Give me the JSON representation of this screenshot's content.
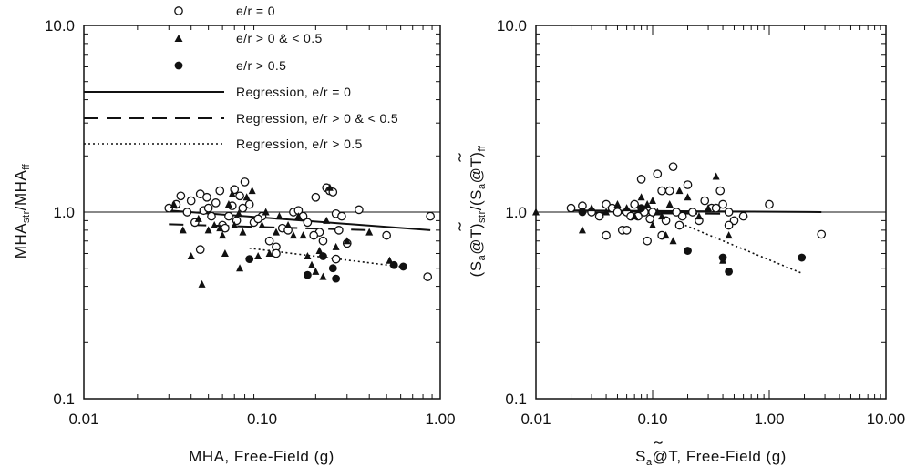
{
  "chart_data": [
    {
      "type": "scatter",
      "xlabel": "MHA, Free-Field (g)",
      "ylabel_main": "MHA",
      "ylabel_sub1": "str",
      "ylabel_mid": "/MHA",
      "ylabel_sub2": "ff",
      "xscale": "log",
      "yscale": "log",
      "xlim": [
        0.01,
        1.0
      ],
      "ylim": [
        0.1,
        10.0
      ],
      "xticks": [
        0.01,
        0.1,
        1.0
      ],
      "xtick_labels": [
        "0.01",
        "0.10",
        "1.00"
      ],
      "yticks": [
        0.1,
        1.0,
        10.0
      ],
      "ytick_labels": [
        "0.1",
        "1.0",
        "10.0"
      ],
      "reference_line_y": 1.0,
      "legend_position": "top",
      "legend": [
        {
          "label": "e/r = 0",
          "marker": "open-circle"
        },
        {
          "label": "e/r > 0 & < 0.5",
          "marker": "filled-triangle"
        },
        {
          "label": "e/r > 0.5",
          "marker": "filled-circle"
        },
        {
          "label": "Regression, e/r = 0",
          "line": "solid"
        },
        {
          "label": "Regression, e/r > 0 & < 0.5",
          "line": "dashed"
        },
        {
          "label": "Regression, e/r > 0.5",
          "line": "dotted"
        }
      ],
      "series": [
        {
          "name": "e/r = 0",
          "marker": "open-circle",
          "points": [
            [
              0.03,
              1.05
            ],
            [
              0.033,
              1.1
            ],
            [
              0.035,
              1.22
            ],
            [
              0.038,
              1.0
            ],
            [
              0.04,
              1.15
            ],
            [
              0.042,
              0.88
            ],
            [
              0.045,
              1.25
            ],
            [
              0.047,
              1.02
            ],
            [
              0.049,
              1.2
            ],
            [
              0.05,
              1.05
            ],
            [
              0.052,
              0.95
            ],
            [
              0.055,
              1.12
            ],
            [
              0.058,
              1.3
            ],
            [
              0.06,
              0.85
            ],
            [
              0.065,
              0.95
            ],
            [
              0.068,
              1.08
            ],
            [
              0.07,
              1.32
            ],
            [
              0.072,
              0.9
            ],
            [
              0.075,
              1.22
            ],
            [
              0.078,
              1.05
            ],
            [
              0.08,
              1.45
            ],
            [
              0.085,
              1.1
            ],
            [
              0.09,
              0.88
            ],
            [
              0.1,
              0.95
            ],
            [
              0.11,
              0.7
            ],
            [
              0.12,
              0.65
            ],
            [
              0.13,
              0.82
            ],
            [
              0.15,
              1.0
            ],
            [
              0.16,
              1.02
            ],
            [
              0.17,
              0.95
            ],
            [
              0.18,
              0.88
            ],
            [
              0.2,
              1.2
            ],
            [
              0.21,
              0.78
            ],
            [
              0.22,
              0.7
            ],
            [
              0.23,
              1.35
            ],
            [
              0.24,
              1.3
            ],
            [
              0.25,
              1.28
            ],
            [
              0.26,
              0.98
            ],
            [
              0.27,
              0.8
            ],
            [
              0.28,
              0.95
            ],
            [
              0.3,
              0.68
            ],
            [
              0.35,
              1.03
            ],
            [
              0.5,
              0.75
            ],
            [
              0.85,
              0.45
            ],
            [
              0.88,
              0.95
            ],
            [
              0.045,
              0.63
            ],
            [
              0.062,
              0.82
            ],
            [
              0.095,
              0.92
            ],
            [
              0.14,
              0.8
            ],
            [
              0.195,
              0.75
            ],
            [
              0.26,
              0.56
            ],
            [
              0.12,
              0.6
            ]
          ]
        },
        {
          "name": "e/r > 0 & < 0.5",
          "marker": "filled-triangle",
          "points": [
            [
              0.032,
              1.1
            ],
            [
              0.036,
              0.8
            ],
            [
              0.04,
              0.58
            ],
            [
              0.044,
              0.92
            ],
            [
              0.046,
              0.41
            ],
            [
              0.05,
              0.8
            ],
            [
              0.054,
              0.85
            ],
            [
              0.058,
              0.82
            ],
            [
              0.06,
              0.75
            ],
            [
              0.065,
              1.1
            ],
            [
              0.068,
              1.25
            ],
            [
              0.07,
              0.85
            ],
            [
              0.074,
              0.98
            ],
            [
              0.078,
              0.78
            ],
            [
              0.082,
              1.2
            ],
            [
              0.088,
              1.3
            ],
            [
              0.095,
              0.58
            ],
            [
              0.1,
              0.85
            ],
            [
              0.105,
              1.0
            ],
            [
              0.11,
              0.6
            ],
            [
              0.12,
              0.78
            ],
            [
              0.14,
              0.85
            ],
            [
              0.15,
              0.75
            ],
            [
              0.16,
              0.95
            ],
            [
              0.17,
              0.75
            ],
            [
              0.18,
              0.58
            ],
            [
              0.19,
              0.52
            ],
            [
              0.2,
              0.48
            ],
            [
              0.21,
              0.62
            ],
            [
              0.22,
              0.45
            ],
            [
              0.24,
              1.35
            ],
            [
              0.26,
              0.65
            ],
            [
              0.3,
              0.7
            ],
            [
              0.4,
              0.78
            ],
            [
              0.52,
              0.55
            ],
            [
              0.062,
              0.6
            ],
            [
              0.075,
              0.5
            ],
            [
              0.125,
              0.95
            ],
            [
              0.23,
              0.9
            ]
          ]
        },
        {
          "name": "e/r > 0.5",
          "marker": "filled-circle",
          "points": [
            [
              0.085,
              0.56
            ],
            [
              0.18,
              0.46
            ],
            [
              0.22,
              0.58
            ],
            [
              0.25,
              0.5
            ],
            [
              0.26,
              0.44
            ],
            [
              0.55,
              0.52
            ],
            [
              0.62,
              0.51
            ]
          ]
        }
      ],
      "regressions": [
        {
          "name": "Regression, e/r = 0",
          "line": "solid",
          "points": [
            [
              0.03,
              1.02
            ],
            [
              0.88,
              0.8
            ]
          ]
        },
        {
          "name": "Regression, e/r > 0 & < 0.5",
          "line": "dashed",
          "points": [
            [
              0.03,
              0.86
            ],
            [
              0.4,
              0.8
            ]
          ]
        },
        {
          "name": "Regression, e/r > 0.5",
          "line": "dotted",
          "points": [
            [
              0.085,
              0.64
            ],
            [
              0.6,
              0.51
            ]
          ]
        }
      ]
    },
    {
      "type": "scatter",
      "xlabel_a": "S",
      "xlabel_sub": "a",
      "xlabel_b": "@T",
      "xlabel_c": ", Free-Field (g)",
      "ylabel_parts": [
        "(S",
        "a",
        "@T)",
        "str",
        "/(S",
        "a",
        "@T)",
        "ff"
      ],
      "xscale": "log",
      "yscale": "log",
      "xlim": [
        0.01,
        10.0
      ],
      "ylim": [
        0.1,
        10.0
      ],
      "xticks": [
        0.01,
        0.1,
        1.0,
        10.0
      ],
      "xtick_labels": [
        "0.01",
        "0.10",
        "1.00",
        "10.00"
      ],
      "yticks": [
        0.1,
        1.0,
        10.0
      ],
      "ytick_labels": [
        "0.1",
        "1.0",
        "10.0"
      ],
      "reference_line_y": 1.0,
      "series": [
        {
          "name": "e/r = 0",
          "marker": "open-circle",
          "points": [
            [
              0.02,
              1.05
            ],
            [
              0.025,
              1.08
            ],
            [
              0.03,
              1.0
            ],
            [
              0.035,
              0.95
            ],
            [
              0.04,
              1.1
            ],
            [
              0.045,
              1.05
            ],
            [
              0.05,
              1.0
            ],
            [
              0.055,
              0.8
            ],
            [
              0.06,
              1.0
            ],
            [
              0.065,
              0.95
            ],
            [
              0.07,
              1.1
            ],
            [
              0.075,
              0.95
            ],
            [
              0.08,
              1.5
            ],
            [
              0.085,
              1.0
            ],
            [
              0.09,
              0.7
            ],
            [
              0.095,
              0.92
            ],
            [
              0.1,
              1.0
            ],
            [
              0.11,
              1.6
            ],
            [
              0.12,
              1.3
            ],
            [
              0.13,
              0.9
            ],
            [
              0.14,
              1.3
            ],
            [
              0.15,
              1.75
            ],
            [
              0.16,
              1.0
            ],
            [
              0.18,
              0.95
            ],
            [
              0.2,
              1.4
            ],
            [
              0.22,
              1.0
            ],
            [
              0.25,
              0.9
            ],
            [
              0.28,
              1.15
            ],
            [
              0.32,
              1.05
            ],
            [
              0.38,
              1.3
            ],
            [
              0.4,
              1.1
            ],
            [
              0.45,
              1.0
            ],
            [
              0.5,
              0.9
            ],
            [
              0.6,
              0.95
            ],
            [
              1.0,
              1.1
            ],
            [
              2.8,
              0.76
            ],
            [
              0.04,
              0.75
            ],
            [
              0.06,
              0.8
            ],
            [
              0.12,
              0.75
            ],
            [
              0.17,
              0.85
            ],
            [
              0.35,
              1.05
            ],
            [
              0.45,
              0.85
            ]
          ]
        },
        {
          "name": "e/r > 0 & < 0.5",
          "marker": "filled-triangle",
          "points": [
            [
              0.01,
              1.0
            ],
            [
              0.025,
              0.8
            ],
            [
              0.03,
              1.05
            ],
            [
              0.04,
              1.0
            ],
            [
              0.05,
              1.1
            ],
            [
              0.06,
              1.05
            ],
            [
              0.07,
              0.95
            ],
            [
              0.08,
              1.2
            ],
            [
              0.09,
              1.1
            ],
            [
              0.1,
              0.85
            ],
            [
              0.11,
              1.0
            ],
            [
              0.12,
              0.95
            ],
            [
              0.13,
              0.75
            ],
            [
              0.15,
              0.7
            ],
            [
              0.17,
              1.3
            ],
            [
              0.2,
              1.2
            ],
            [
              0.25,
              0.95
            ],
            [
              0.3,
              1.05
            ],
            [
              0.35,
              1.55
            ],
            [
              0.4,
              0.55
            ],
            [
              0.45,
              0.75
            ],
            [
              0.1,
              1.15
            ],
            [
              0.14,
              1.1
            ]
          ]
        },
        {
          "name": "e/r > 0.5",
          "marker": "filled-circle",
          "points": [
            [
              0.025,
              1.0
            ],
            [
              0.08,
              1.05
            ],
            [
              0.2,
              0.62
            ],
            [
              0.4,
              0.57
            ],
            [
              0.45,
              0.48
            ],
            [
              1.9,
              0.57
            ]
          ]
        }
      ],
      "regressions": [
        {
          "name": "Regression, e/r = 0",
          "line": "solid",
          "points": [
            [
              0.02,
              1.02
            ],
            [
              2.8,
              1.0
            ]
          ]
        },
        {
          "name": "Regression, e/r > 0 & < 0.5",
          "line": "dashed",
          "points": [
            [
              0.03,
              0.99
            ],
            [
              0.45,
              0.98
            ]
          ]
        },
        {
          "name": "Regression, e/r > 0.5",
          "line": "dotted",
          "points": [
            [
              0.19,
              0.85
            ],
            [
              1.9,
              0.47
            ]
          ]
        }
      ]
    }
  ]
}
